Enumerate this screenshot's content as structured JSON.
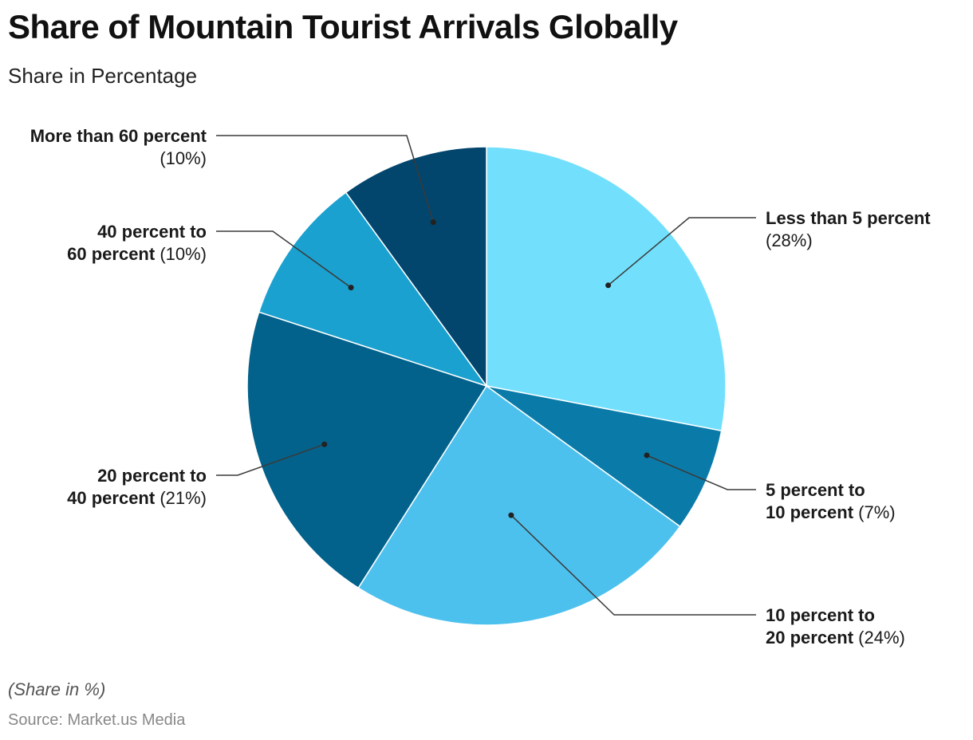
{
  "chart_data": {
    "type": "pie",
    "title": "Share of Mountain Tourist Arrivals Globally",
    "subtitle": "Share in Percentage",
    "slices": [
      {
        "label": "Less than 5 percent",
        "value": 28,
        "color": "#72e0fd"
      },
      {
        "label": "5 percent to 10 percent",
        "value": 7,
        "color": "#0a7ba8"
      },
      {
        "label": "10 percent to 20 percent",
        "value": 24,
        "color": "#4dc1ed"
      },
      {
        "label": "20 percent to 40 percent",
        "value": 21,
        "color": "#02628c"
      },
      {
        "label": "40 percent to 60 percent",
        "value": 10,
        "color": "#1aa1cf"
      },
      {
        "label": "More than 60 percent",
        "value": 10,
        "color": "#02456d"
      }
    ]
  },
  "footer": {
    "note": "(Share in %)",
    "source": "Source: Market.us Media"
  }
}
